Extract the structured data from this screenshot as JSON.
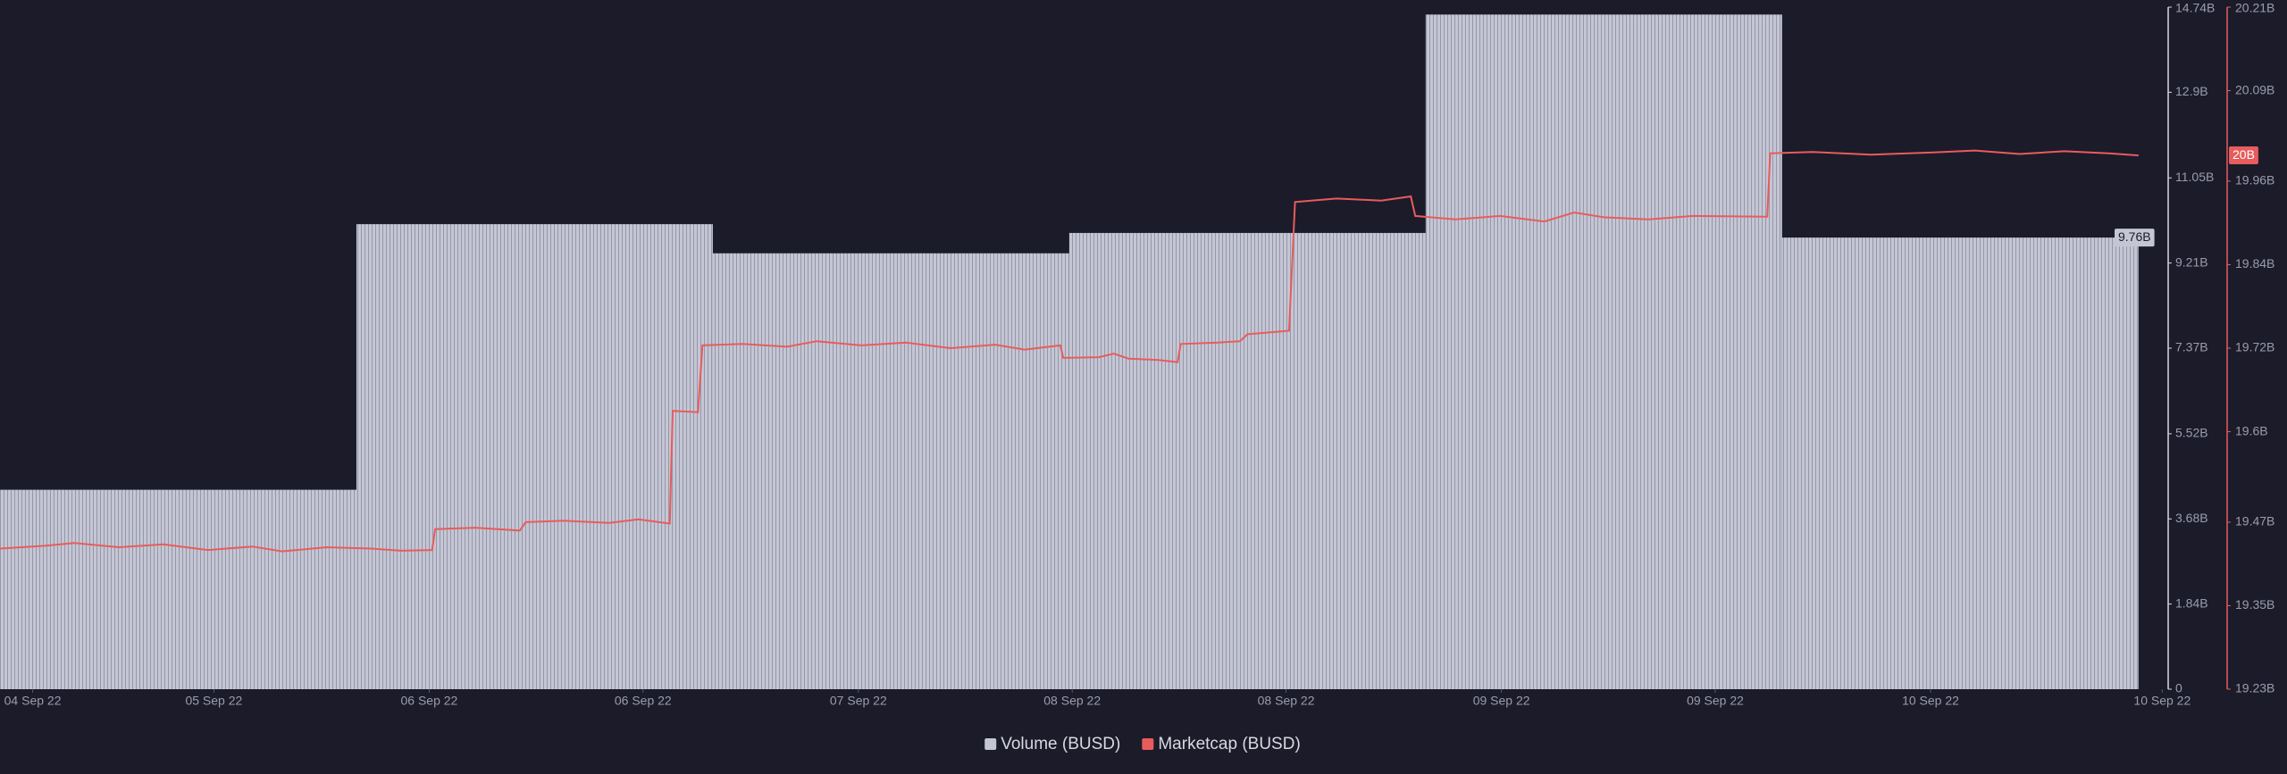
{
  "chart_data": {
    "type": "bar-line",
    "xlim": [
      0,
      146
    ],
    "xticks": [
      {
        "value": 2.2,
        "label": "04 Sep 22"
      },
      {
        "value": 14.4,
        "label": "05 Sep 22"
      },
      {
        "value": 28.9,
        "label": "06 Sep 22"
      },
      {
        "value": 43.3,
        "label": "06 Sep 22"
      },
      {
        "value": 57.8,
        "label": "07 Sep 22"
      },
      {
        "value": 72.2,
        "label": "08 Sep 22"
      },
      {
        "value": 86.6,
        "label": "08 Sep 22"
      },
      {
        "value": 101.1,
        "label": "09 Sep 22"
      },
      {
        "value": 115.5,
        "label": "09 Sep 22"
      },
      {
        "value": 130,
        "label": "10 Sep 22"
      },
      {
        "value": 145.6,
        "label": "10 Sep 22"
      }
    ],
    "ylim": [
      0,
      14.74
    ],
    "yticks": [
      0,
      {
        "value": 1.84,
        "label": "1.84B"
      },
      {
        "value": 3.68,
        "label": "3.68B"
      },
      {
        "value": 5.52,
        "label": "5.52B"
      },
      {
        "value": 7.37,
        "label": "7.37B"
      },
      {
        "value": 9.21,
        "label": "9.21B"
      },
      {
        "value": 11.05,
        "label": "11.05B"
      },
      {
        "value": 12.9,
        "label": "12.9B"
      },
      {
        "value": 14.74,
        "label": "14.74B"
      }
    ],
    "y2lim": [
      19.23,
      20.21
    ],
    "y2ticks": [
      {
        "value": 19.23,
        "label": "19.23B"
      },
      {
        "value": 19.35,
        "label": "19.35B"
      },
      {
        "value": 19.47,
        "label": "19.47B"
      },
      {
        "value": 19.6,
        "label": "19.6B"
      },
      {
        "value": 19.72,
        "label": "19.72B"
      },
      {
        "value": 19.84,
        "label": "19.84B"
      },
      {
        "value": 19.96,
        "label": "19.96B"
      },
      {
        "value": 20.09,
        "label": "20.09B"
      },
      {
        "value": 20.21,
        "label": "20.21B"
      }
    ],
    "series": [
      {
        "name": "Volume (BUSD)",
        "type": "bar",
        "color": "#c4c6d4",
        "bins": [
          0,
          24,
          48,
          72,
          96,
          120,
          144
        ],
        "values": [
          4.31,
          10.05,
          9.42,
          9.86,
          14.58,
          9.76
        ],
        "current_label": "9.76B"
      },
      {
        "name": "Marketcap (BUSD)",
        "type": "line",
        "axis": "y2",
        "color": "#e85c5c",
        "x": [
          0,
          3,
          5,
          8,
          11,
          14,
          17,
          19,
          22,
          25,
          27,
          29.1,
          29.3,
          32,
          35,
          35.4,
          38,
          41,
          43,
          45.1,
          45.3,
          47,
          47.3,
          50,
          53,
          55,
          58,
          61,
          64,
          67,
          69,
          71.4,
          71.6,
          74,
          75,
          76,
          78,
          79.3,
          79.5,
          82,
          83.5,
          84,
          86.8,
          87.2,
          90,
          93,
          95,
          95.3,
          98,
          101,
          104,
          106,
          108,
          111,
          114,
          119,
          119.2,
          122,
          126,
          130,
          133,
          136,
          139,
          142,
          144
        ],
        "values": [
          19.432,
          19.436,
          19.44,
          19.434,
          19.438,
          19.43,
          19.435,
          19.428,
          19.434,
          19.432,
          19.429,
          19.43,
          19.46,
          19.462,
          19.458,
          19.47,
          19.472,
          19.469,
          19.474,
          19.468,
          19.63,
          19.628,
          19.724,
          19.726,
          19.722,
          19.73,
          19.724,
          19.728,
          19.72,
          19.725,
          19.718,
          19.724,
          19.706,
          19.707,
          19.712,
          19.705,
          19.703,
          19.7,
          19.726,
          19.728,
          19.73,
          19.74,
          19.745,
          19.93,
          19.935,
          19.932,
          19.938,
          19.91,
          19.905,
          19.91,
          19.902,
          19.915,
          19.908,
          19.905,
          19.91,
          19.909,
          20.0,
          20.002,
          19.998,
          20.001,
          20.004,
          19.999,
          20.003,
          20.0,
          19.997
        ],
        "current_label": "20B"
      }
    ]
  }
}
